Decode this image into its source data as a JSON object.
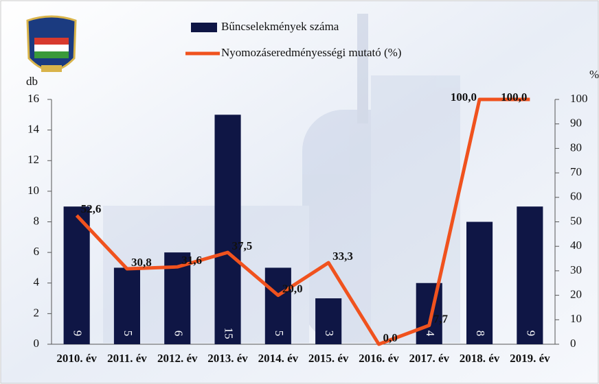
{
  "chart_data": {
    "type": "bar+line",
    "categories": [
      "2010. év",
      "2011. év",
      "2012. év",
      "2013. év",
      "2014. év",
      "2015. év",
      "2016. év",
      "2017. év",
      "2018. év",
      "2019. év"
    ],
    "series": [
      {
        "name": "Bűncselekmények száma",
        "type": "bar",
        "color": "#0f1645",
        "values": [
          9,
          5,
          6,
          15,
          5,
          3,
          null,
          4,
          8,
          9
        ]
      },
      {
        "name": "Nyomozáseredményességi mutató (%)",
        "type": "line",
        "axis": "y2",
        "color": "#f0521e",
        "values": [
          52.6,
          30.8,
          31.6,
          37.5,
          20.0,
          33.3,
          0.0,
          7.7,
          100.0,
          100.0
        ],
        "value_labels": [
          "52,6",
          "30,8",
          "31,6",
          "37,5",
          "20,0",
          "33,3",
          "0,0",
          "7,7",
          "100,0",
          "100,0"
        ]
      }
    ],
    "y_label": "db",
    "y2_label": "%",
    "ylim": [
      0,
      16
    ],
    "yticks": [
      0,
      2,
      4,
      6,
      8,
      10,
      12,
      14,
      16
    ],
    "y2lim": [
      0,
      100
    ],
    "y2ticks": [
      0,
      10,
      20,
      30,
      40,
      50,
      60,
      70,
      80,
      90,
      100
    ]
  }
}
